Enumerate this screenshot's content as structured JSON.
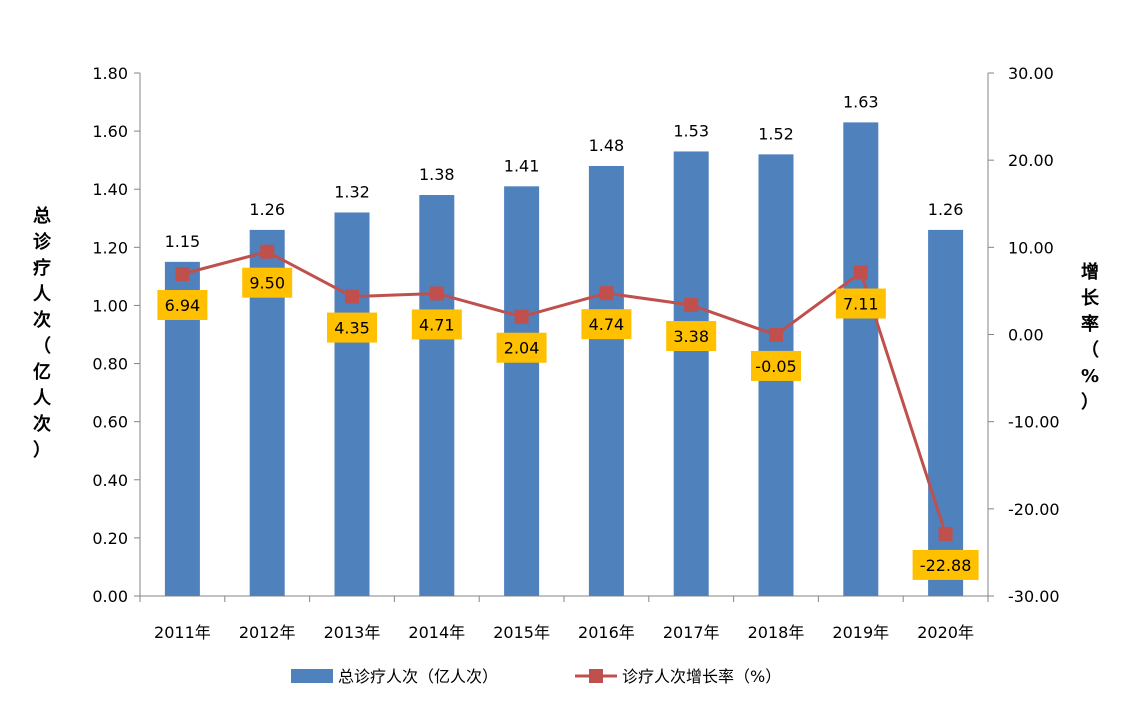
{
  "chart_data": {
    "type": "bar",
    "categories": [
      "2011年",
      "2012年",
      "2013年",
      "2014年",
      "2015年",
      "2016年",
      "2017年",
      "2018年",
      "2019年",
      "2020年"
    ],
    "series": [
      {
        "name": "总诊疗人次（亿人次）",
        "type": "bar",
        "axis": "left",
        "values": [
          1.15,
          1.26,
          1.32,
          1.38,
          1.41,
          1.48,
          1.53,
          1.52,
          1.63,
          1.26
        ],
        "labels": [
          "1.15",
          "1.26",
          "1.32",
          "1.38",
          "1.41",
          "1.48",
          "1.53",
          "1.52",
          "1.63",
          "1.26"
        ],
        "color": "#4F81BD"
      },
      {
        "name": "诊疗人次增长率（%）",
        "type": "line",
        "axis": "right",
        "values": [
          6.94,
          9.5,
          4.35,
          4.71,
          2.04,
          4.74,
          3.38,
          -0.05,
          7.11,
          -22.88
        ],
        "labels": [
          "6.94",
          "9.50",
          "4.35",
          "4.71",
          "2.04",
          "4.74",
          "3.38",
          "-0.05",
          "7.11",
          "-22.88"
        ],
        "color": "#C0504D",
        "label_box_color": "#FFC000"
      }
    ],
    "y_left": {
      "title": "总诊疗人次（亿人次）",
      "range": [
        0,
        1.8
      ],
      "ticks": [
        "0.00",
        "0.20",
        "0.40",
        "0.60",
        "0.80",
        "1.00",
        "1.20",
        "1.40",
        "1.60",
        "1.80"
      ]
    },
    "y_right": {
      "title": "增长率（%）",
      "range": [
        -30,
        30
      ],
      "ticks": [
        "-30.00",
        "-20.00",
        "-10.00",
        "0.00",
        "10.00",
        "20.00",
        "30.00"
      ]
    },
    "legend_position": "bottom",
    "grid": false
  }
}
